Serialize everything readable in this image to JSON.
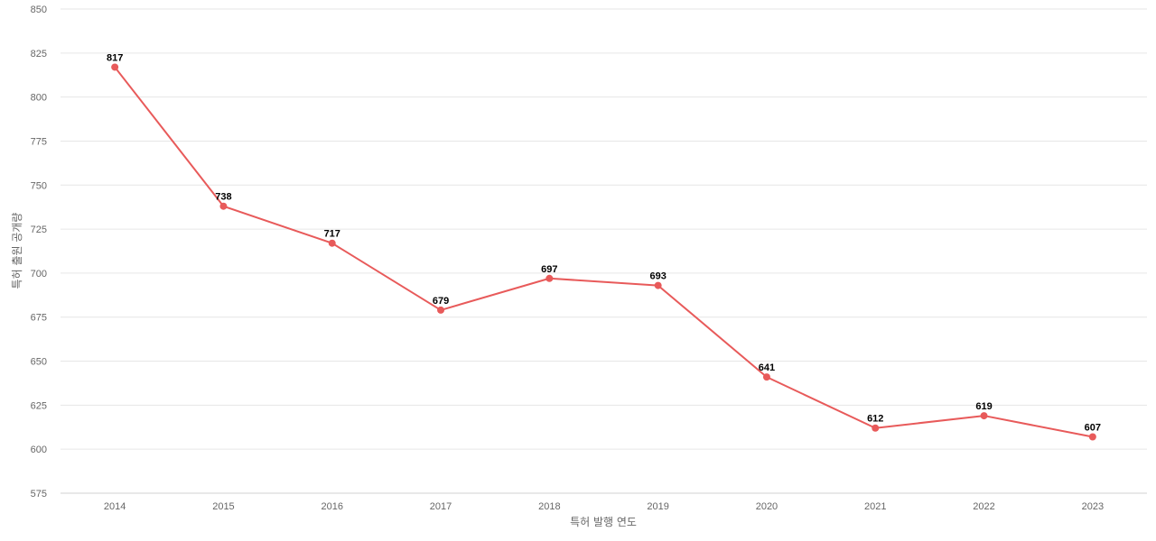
{
  "chart_data": {
    "type": "line",
    "title": "",
    "xlabel": "특허 발행 연도",
    "ylabel": "특허 출원 공개량",
    "categories": [
      "2014",
      "2015",
      "2016",
      "2017",
      "2018",
      "2019",
      "2020",
      "2021",
      "2022",
      "2023"
    ],
    "series": [
      {
        "values": [
          817,
          738,
          717,
          679,
          697,
          693,
          641,
          612,
          619,
          607
        ],
        "color": "#e85a5a"
      }
    ],
    "ylim": [
      575,
      850
    ],
    "yticks": [
      575,
      600,
      625,
      650,
      675,
      700,
      725,
      750,
      775,
      800,
      825,
      850
    ],
    "grid": true,
    "legend": "none",
    "data_labels": true
  }
}
